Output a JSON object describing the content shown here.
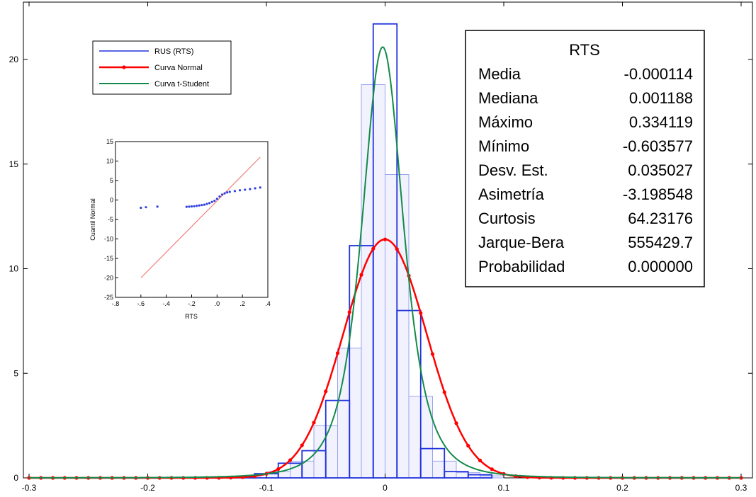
{
  "chart_data": [
    {
      "type": "histogram-with-curves",
      "xlim": [
        -0.3,
        0.3
      ],
      "ylim": [
        0,
        22
      ],
      "x_ticks": [
        -0.3,
        -0.2,
        -0.1,
        0,
        0.1,
        0.2,
        0.3
      ],
      "x_tick_labels": [
        "-0.3",
        "-0.2",
        "-0.1",
        "0",
        "0.1",
        "0.2",
        "0.3"
      ],
      "y_ticks": [
        0,
        5,
        10,
        15,
        20
      ],
      "y_tick_labels": [
        "0",
        "5",
        "10",
        "15",
        "20"
      ],
      "legend": {
        "position": "top-left",
        "entries": [
          "RUS (RTS)",
          "Curva Normal",
          "Curva t-Student"
        ]
      },
      "colors": {
        "histogram": "#2233dd",
        "normal": "#ff0000",
        "student": "#138a4a"
      },
      "histogram_dark": {
        "bins": [
          -0.13,
          -0.11,
          -0.09,
          -0.07,
          -0.05,
          -0.03,
          -0.01,
          0.01,
          0.03,
          0.05,
          0.07,
          0.09
        ],
        "values": [
          0.05,
          0.2,
          0.7,
          1.3,
          3.7,
          11.1,
          21.7,
          8.0,
          1.4,
          0.3,
          0.15
        ]
      },
      "histogram_light": {
        "bins": [
          -0.1,
          -0.08,
          -0.06,
          -0.04,
          -0.02,
          0,
          0.02,
          0.04,
          0.06,
          0.08,
          0.1
        ],
        "values": [
          0.3,
          0.8,
          2.5,
          6.2,
          18.8,
          14.5,
          3.9,
          0.8,
          0.25,
          0.1
        ]
      },
      "normal_curve": {
        "mean": -0.000114,
        "sd": 0.035027,
        "peak": 11.4,
        "marker_step": 0.01
      },
      "student_curve": {
        "center": -0.002,
        "scale": 0.0185,
        "df": 3,
        "peak": 20.6
      },
      "stats": {
        "title": "RTS",
        "rows": [
          {
            "label": "Media",
            "value": "-0.000114"
          },
          {
            "label": "Mediana",
            "value": "0.001188"
          },
          {
            "label": "Máximo",
            "value": "0.334119"
          },
          {
            "label": "Mínimo",
            "value": "-0.603577"
          },
          {
            "label": "Desv. Est.",
            "value": "0.035027"
          },
          {
            "label": "Asimetría",
            "value": "-3.198548"
          },
          {
            "label": "Curtosis",
            "value": "64.23176"
          },
          {
            "label": "Jarque-Bera",
            "value": "555429.7"
          },
          {
            "label": "Probabilidad",
            "value": "0.000000"
          }
        ]
      }
    },
    {
      "type": "scatter",
      "xlabel": "RTS",
      "ylabel": "Cuantil Normal",
      "xlim": [
        -0.8,
        0.4
      ],
      "ylim": [
        -25,
        15
      ],
      "x_ticks": [
        -0.8,
        -0.6,
        -0.4,
        -0.2,
        0,
        0.2,
        0.4
      ],
      "x_tick_labels": [
        "-.8",
        "-.6",
        "-.4",
        "-.2",
        ".0",
        ".2",
        ".4"
      ],
      "y_ticks": [
        -25,
        -20,
        -15,
        -10,
        -5,
        0,
        5,
        10,
        15
      ],
      "y_tick_labels": [
        "-25",
        "-20",
        "-15",
        "-10",
        "-5",
        "0",
        "5",
        "10",
        "15"
      ],
      "reference_line": {
        "x": [
          -0.6,
          0.34
        ],
        "y": [
          -20,
          11
        ]
      },
      "points": [
        [
          -0.6,
          -2.0
        ],
        [
          -0.56,
          -1.85
        ],
        [
          -0.47,
          -1.7
        ],
        [
          -0.24,
          -1.75
        ],
        [
          -0.22,
          -1.7
        ],
        [
          -0.2,
          -1.65
        ],
        [
          -0.18,
          -1.6
        ],
        [
          -0.16,
          -1.5
        ],
        [
          -0.14,
          -1.4
        ],
        [
          -0.12,
          -1.3
        ],
        [
          -0.1,
          -1.2
        ],
        [
          -0.08,
          -1.0
        ],
        [
          -0.06,
          -0.8
        ],
        [
          -0.04,
          -0.5
        ],
        [
          -0.02,
          -0.2
        ],
        [
          0.0,
          0.3
        ],
        [
          0.02,
          0.9
        ],
        [
          0.04,
          1.4
        ],
        [
          0.06,
          1.7
        ],
        [
          0.08,
          1.95
        ],
        [
          0.1,
          2.1
        ],
        [
          0.14,
          2.3
        ],
        [
          0.18,
          2.5
        ],
        [
          0.22,
          2.65
        ],
        [
          0.26,
          2.8
        ],
        [
          0.3,
          3.0
        ],
        [
          0.34,
          3.2
        ]
      ]
    }
  ]
}
